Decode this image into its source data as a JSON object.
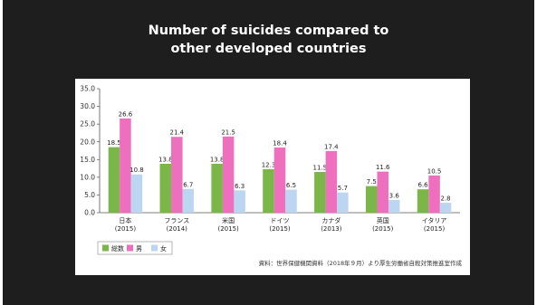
{
  "slide": {
    "title_line1": "Number of suicides compared to",
    "title_line2": "other developed countries"
  },
  "chart_data": {
    "type": "bar",
    "categories": [
      [
        "日本",
        "(2015)"
      ],
      [
        "フランス",
        "(2014)"
      ],
      [
        "米国",
        "(2015)"
      ],
      [
        "ドイツ",
        "(2015)"
      ],
      [
        "カナダ",
        "(2013)"
      ],
      [
        "英国",
        "(2015)"
      ],
      [
        "イタリア",
        "(2015)"
      ]
    ],
    "series": [
      {
        "name": "総数",
        "color": "#7ab648",
        "values": [
          18.5,
          13.8,
          13.8,
          12.3,
          11.5,
          7.5,
          6.6
        ]
      },
      {
        "name": "男",
        "color": "#ee6fbd",
        "values": [
          26.6,
          21.4,
          21.5,
          18.4,
          17.4,
          11.6,
          10.5
        ]
      },
      {
        "name": "女",
        "color": "#bcd6f2",
        "values": [
          10.8,
          6.7,
          6.3,
          6.5,
          5.7,
          3.6,
          2.8
        ]
      }
    ],
    "ylim": [
      0,
      35
    ],
    "yticks": [
      "0.0",
      "5.0",
      "10.0",
      "15.0",
      "20.0",
      "25.0",
      "30.0",
      "35.0"
    ],
    "grid": false,
    "legend_position": "bottom-left",
    "source": "資料：世界保健機関資料（2018年９月）より厚生労働省自殺対策推進室作成"
  }
}
